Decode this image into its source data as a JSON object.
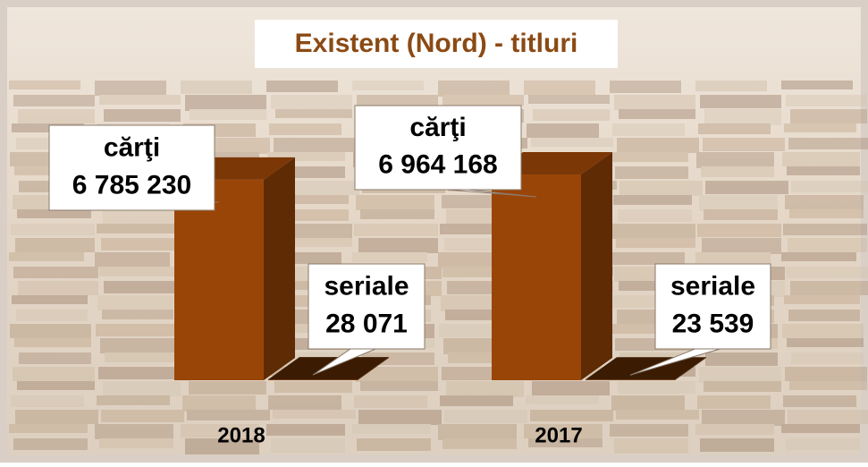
{
  "chart_data": {
    "type": "bar3d",
    "title": "Existent (Nord) - titluri",
    "categories": [
      "2018",
      "2017"
    ],
    "series": [
      {
        "name": "cărţi",
        "color": "#9a4508",
        "values": [
          6785230,
          6964168
        ],
        "value_labels": [
          "6 785 230",
          "6 964 168"
        ]
      },
      {
        "name": "seriale",
        "color": "#6b3206",
        "values": [
          28071,
          23539
        ],
        "value_labels": [
          "28 071",
          "23 539"
        ]
      }
    ]
  }
}
